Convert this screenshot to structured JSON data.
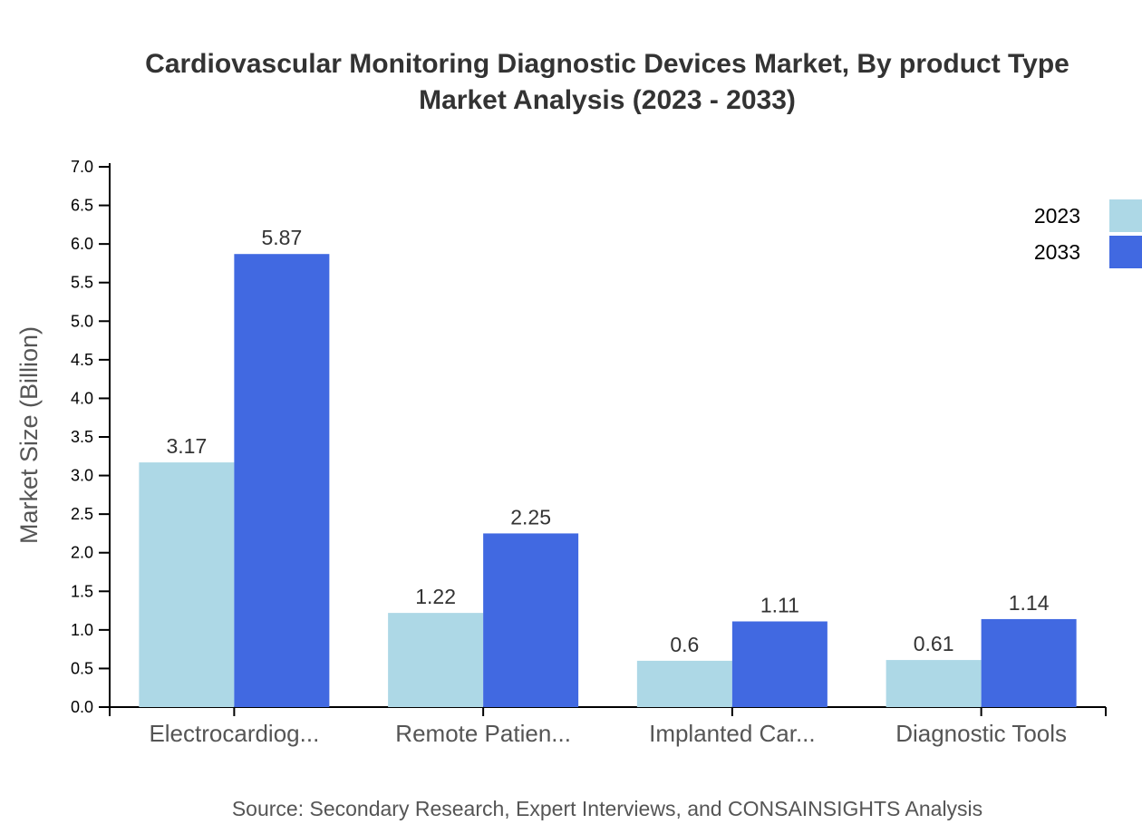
{
  "chart_data": {
    "type": "bar",
    "title_line1": "Cardiovascular Monitoring Diagnostic Devices Market, By product Type",
    "title_line2": "Market Analysis (2023 - 2033)",
    "ylabel": "Market Size (Billion)",
    "xlabel": "",
    "ylim": [
      0,
      7.0
    ],
    "yticks": [
      "0.0",
      "0.5",
      "1.0",
      "1.5",
      "2.0",
      "2.5",
      "3.0",
      "3.5",
      "4.0",
      "4.5",
      "5.0",
      "5.5",
      "6.0",
      "6.5",
      "7.0"
    ],
    "categories": [
      "Electrocardiog...",
      "Remote Patien...",
      "Implanted Car...",
      "Diagnostic Tools"
    ],
    "series": [
      {
        "name": "2023",
        "color": "#add8e6",
        "values": [
          3.17,
          1.22,
          0.6,
          0.61
        ]
      },
      {
        "name": "2033",
        "color": "#4169e1",
        "values": [
          5.87,
          2.25,
          1.11,
          1.14
        ]
      }
    ],
    "legend_position": "top-right",
    "grid": false,
    "source": "Source: Secondary Research, Expert Interviews, and CONSAINSIGHTS Analysis"
  }
}
